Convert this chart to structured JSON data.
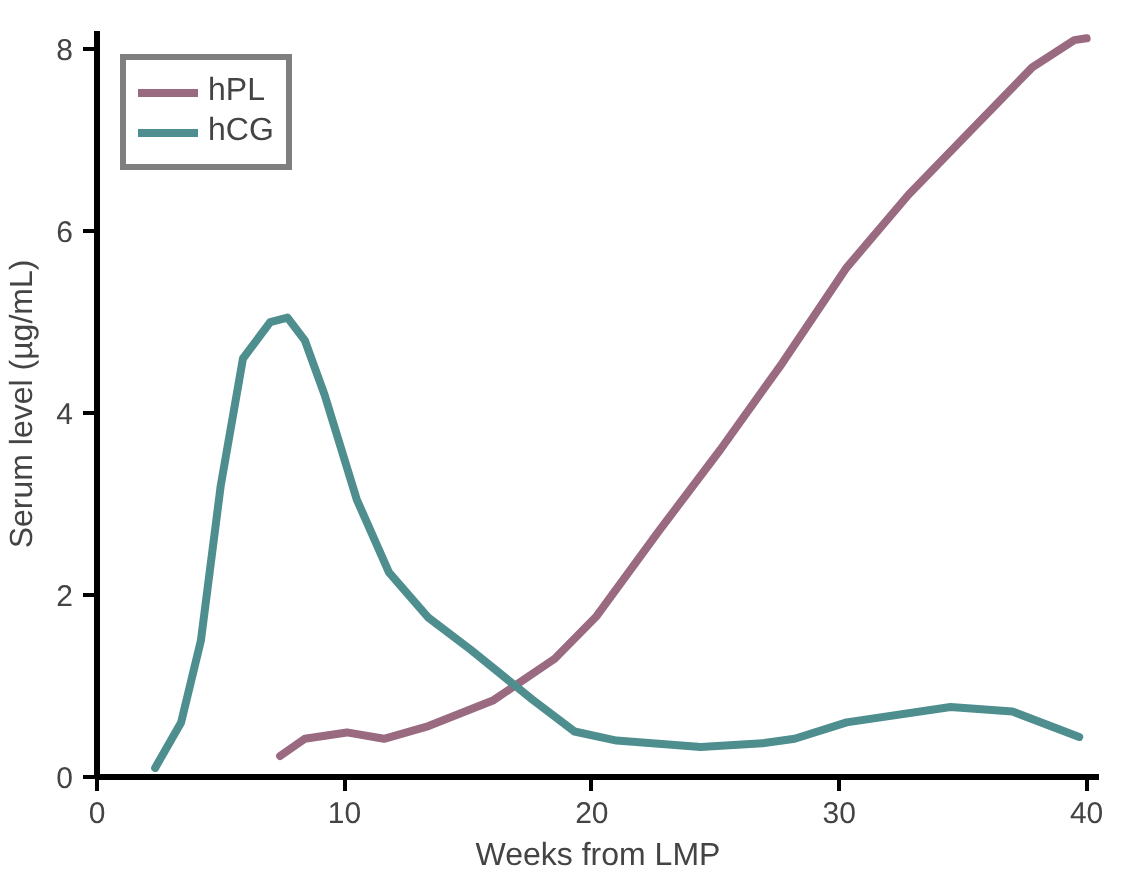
{
  "chart_data": {
    "type": "line",
    "xlabel": "Weeks from LMP",
    "ylabel": "Serum level (µg/mL)",
    "xlim": [
      0,
      40.5
    ],
    "ylim": [
      0,
      8.2
    ],
    "xticks": [
      0,
      10,
      20,
      30,
      40
    ],
    "yticks": [
      0,
      2,
      4,
      6,
      8
    ],
    "grid": false,
    "legend": "top left",
    "line_style": "solid",
    "marker": "none",
    "series": [
      {
        "name": "hPL",
        "color": "#9a6a80",
        "x": [
          7.4,
          8.4,
          10.1,
          11.6,
          13.4,
          16,
          18.5,
          20.2,
          22.7,
          25.2,
          27.7,
          30.3,
          32.8,
          35.3,
          37.8,
          39.5,
          40
        ],
        "values": [
          0.23,
          0.42,
          0.49,
          0.42,
          0.56,
          0.84,
          1.3,
          1.77,
          2.7,
          3.6,
          4.55,
          5.6,
          6.4,
          7.1,
          7.8,
          8.1,
          8.12
        ]
      },
      {
        "name": "hCG",
        "color": "#4e8e8e",
        "x": [
          2.35,
          3.4,
          4.2,
          5.0,
          5.9,
          7.0,
          7.7,
          8.4,
          9.2,
          10.5,
          11.8,
          13.4,
          15.1,
          17.6,
          19.3,
          21,
          24.4,
          26.9,
          28.2,
          30.3,
          34.5,
          37,
          39.7
        ],
        "values": [
          0.1,
          0.6,
          1.5,
          3.2,
          4.6,
          5.0,
          5.05,
          4.8,
          4.2,
          3.05,
          2.25,
          1.75,
          1.4,
          0.85,
          0.5,
          0.4,
          0.33,
          0.37,
          0.42,
          0.6,
          0.77,
          0.72,
          0.44
        ]
      }
    ]
  }
}
